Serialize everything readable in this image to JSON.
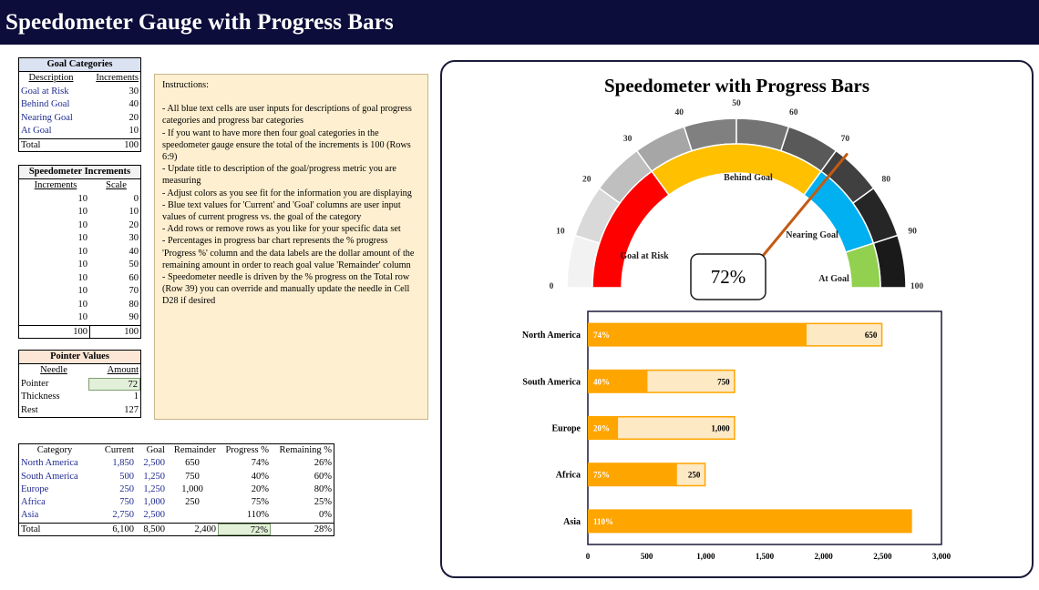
{
  "title": "Speedometer Gauge with Progress Bars",
  "goal_categories": {
    "header": "Goal Categories",
    "col_description": "Description",
    "col_increments": "Increments",
    "rows": [
      {
        "description": "Goal at Risk",
        "increments": "30"
      },
      {
        "description": "Behind Goal",
        "increments": "40"
      },
      {
        "description": "Nearing Goal",
        "increments": "20"
      },
      {
        "description": "At Goal",
        "increments": "10"
      }
    ],
    "total_label": "Total",
    "total_value": "100"
  },
  "speedometer_increments": {
    "header": "Speedometer Increments",
    "col_increments": "Increments",
    "col_scale": "Scale",
    "rows": [
      {
        "inc": "10",
        "scale": "0"
      },
      {
        "inc": "10",
        "scale": "10"
      },
      {
        "inc": "10",
        "scale": "20"
      },
      {
        "inc": "10",
        "scale": "30"
      },
      {
        "inc": "10",
        "scale": "40"
      },
      {
        "inc": "10",
        "scale": "50"
      },
      {
        "inc": "10",
        "scale": "60"
      },
      {
        "inc": "10",
        "scale": "70"
      },
      {
        "inc": "10",
        "scale": "80"
      },
      {
        "inc": "10",
        "scale": "90"
      }
    ],
    "total_inc": "100",
    "total_scale": "100"
  },
  "pointer_values": {
    "header": "Pointer Values",
    "col_needle": "Needle",
    "col_amount": "Amount",
    "rows": [
      {
        "label": "Pointer",
        "value": "72"
      },
      {
        "label": "Thickness",
        "value": "1"
      },
      {
        "label": "Rest",
        "value": "127"
      }
    ]
  },
  "instructions": [
    "Instructions:",
    "",
    "- All blue text cells are user inputs for descriptions of goal progress categories and progress bar categories",
    "- If you want to have more then four goal categories in the speedometer  gauge ensure the total of the increments is 100 (Rows 6:9)",
    "- Update title to description of the goal/progress metric you are measuring",
    "- Adjust colors as you see fit for the information you are displaying",
    "- Blue text values for  'Current' and 'Goal' columns are user input values of current progress vs. the goal of the category",
    "- Add rows or remove  rows as you like for your specific data set",
    "- Percentages in progress bar chart represents the % progress 'Progress %' column and the data labels are the dollar amount of the remaining amount in order to reach goal value 'Remainder' column",
    "- Speedometer  needle is driven by the % progress on the Total row (Row 39) you can override  and manually update the needle in Cell D28 if desired"
  ],
  "data_table": {
    "headers": [
      "Category",
      "Current",
      "Goal",
      "Remainder",
      "Progress %",
      "Remaining %"
    ],
    "rows": [
      {
        "category": "North America",
        "current": "1,850",
        "goal": "2,500",
        "remainder": "650",
        "progress": "74%",
        "remaining": "26%"
      },
      {
        "category": "South America",
        "current": "500",
        "goal": "1,250",
        "remainder": "750",
        "progress": "40%",
        "remaining": "60%"
      },
      {
        "category": "Europe",
        "current": "250",
        "goal": "1,250",
        "remainder": "1,000",
        "progress": "20%",
        "remaining": "80%"
      },
      {
        "category": "Africa",
        "current": "750",
        "goal": "1,000",
        "remainder": "250",
        "progress": "75%",
        "remaining": "25%"
      },
      {
        "category": "Asia",
        "current": "2,750",
        "goal": "2,500",
        "remainder": "",
        "progress": "110%",
        "remaining": "0%"
      }
    ],
    "total": {
      "category": "Total",
      "current": "6,100",
      "goal": "8,500",
      "remainder": "2,400",
      "progress": "72%",
      "remaining": "28%"
    }
  },
  "colors": {
    "title_bar": "#0c0d3a",
    "goal_at_risk": "#ff0000",
    "behind_goal": "#ffc000",
    "nearing_goal": "#00b0f0",
    "at_goal": "#92d050",
    "needle": "#c55a11",
    "bar_progress": "#ffa500",
    "bar_remainder": "#fde9c4"
  },
  "chart_data": [
    {
      "type": "gauge",
      "title": "Speedometer with Progress Bars",
      "value": 72,
      "value_label": "72%",
      "min": 0,
      "max": 100,
      "ticks": [
        "0",
        "10",
        "20",
        "30",
        "40",
        "50",
        "60",
        "70",
        "80",
        "90",
        "100"
      ],
      "outer_ring_shades": [
        "#f2f2f2",
        "#d9d9d9",
        "#bfbfbf",
        "#a6a6a6",
        "#808080",
        "#737373",
        "#595959",
        "#404040",
        "#262626",
        "#1a1a1a"
      ],
      "bands": [
        {
          "name": "Goal at Risk",
          "size": 30,
          "color": "#ff0000"
        },
        {
          "name": "Behind Goal",
          "size": 40,
          "color": "#ffc000"
        },
        {
          "name": "Nearing Goal",
          "size": 20,
          "color": "#00b0f0"
        },
        {
          "name": "At Goal",
          "size": 10,
          "color": "#92d050"
        }
      ]
    },
    {
      "type": "bar",
      "orientation": "horizontal",
      "stacked": true,
      "categories": [
        "North America",
        "South America",
        "Europe",
        "Africa",
        "Asia"
      ],
      "series": [
        {
          "values": [
            1850,
            500,
            250,
            750,
            2750
          ],
          "labels": [
            "74%",
            "40%",
            "20%",
            "75%",
            "110%"
          ]
        },
        {
          "values": [
            650,
            750,
            1000,
            250,
            0
          ],
          "labels": [
            "650",
            "750",
            "1,000",
            "250",
            ""
          ]
        }
      ],
      "xlim": [
        0,
        3000
      ],
      "xticks": [
        "0",
        "500",
        "1,000",
        "1,500",
        "2,000",
        "2,500",
        "3,000"
      ]
    }
  ]
}
